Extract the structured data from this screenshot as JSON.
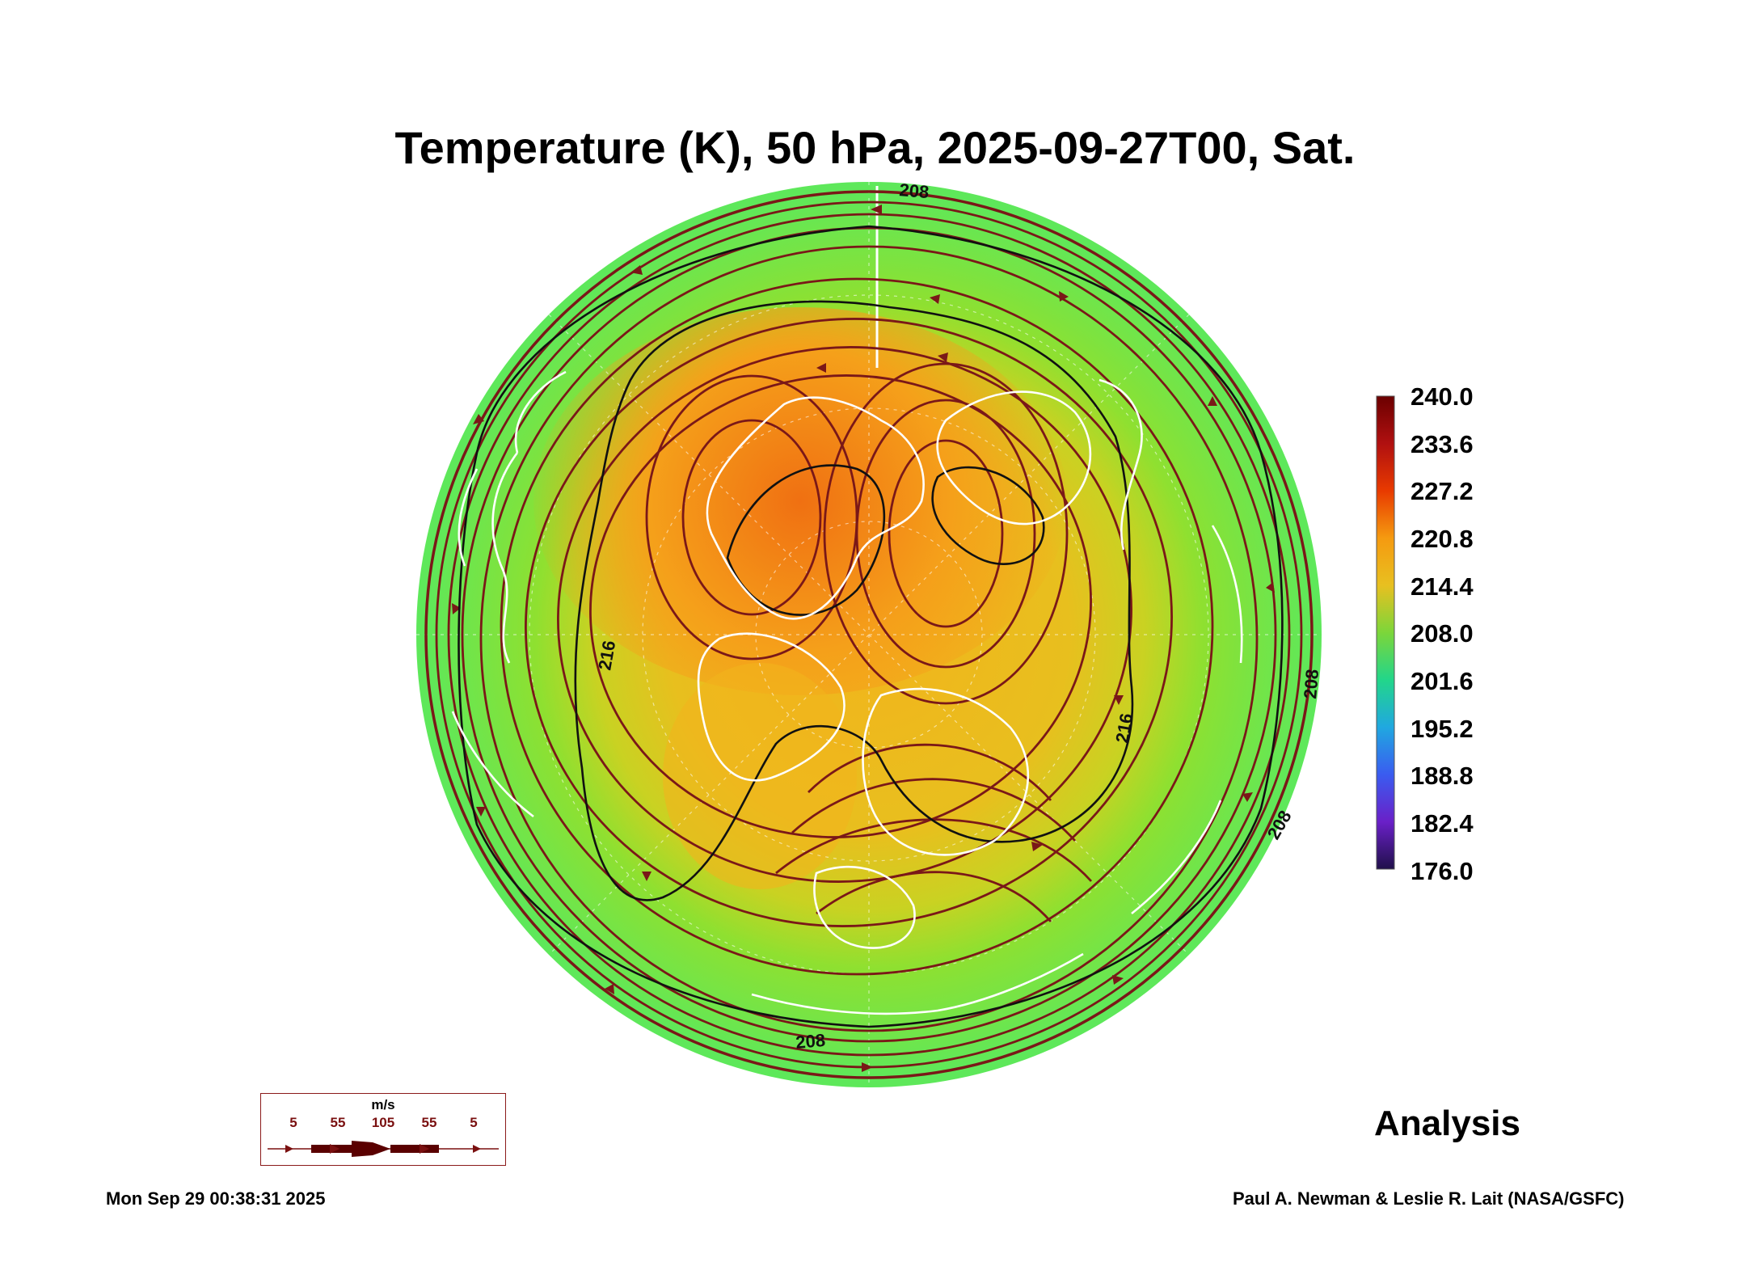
{
  "title": "Temperature (K), 50 hPa, 2025-09-27T00, Sat.",
  "colorbar": {
    "labels": [
      "240.0",
      "233.6",
      "227.2",
      "220.8",
      "214.4",
      "208.0",
      "201.6",
      "195.2",
      "188.8",
      "182.4",
      "176.0"
    ],
    "colors": [
      "#6b0000",
      "#b01010",
      "#e83a00",
      "#f59a10",
      "#e8c020",
      "#7cd63a",
      "#22d68a",
      "#20a8e0",
      "#3a5cf0",
      "#6a20c8",
      "#20104a"
    ]
  },
  "contour_labels": {
    "c216_left": "216",
    "c216_right": "216",
    "c208_bottom": "208",
    "c208_top": "208",
    "c208_right": "208",
    "c208_lowright": "208"
  },
  "legend": {
    "unit": "m/s",
    "values": [
      "5",
      "55",
      "105",
      "55",
      "5"
    ]
  },
  "analysis_label": "Analysis",
  "timestamp": "Mon Sep 29 00:38:31 2025",
  "credit": "Paul A. Newman & Leslie R. Lait (NASA/GSFC)",
  "colors": {
    "outer": "#7de63a",
    "mid": "#d8cc1c",
    "warm": "#f5a21a",
    "hot": "#f07f12",
    "streamline": "#7a1818",
    "coast": "#ffffff"
  }
}
